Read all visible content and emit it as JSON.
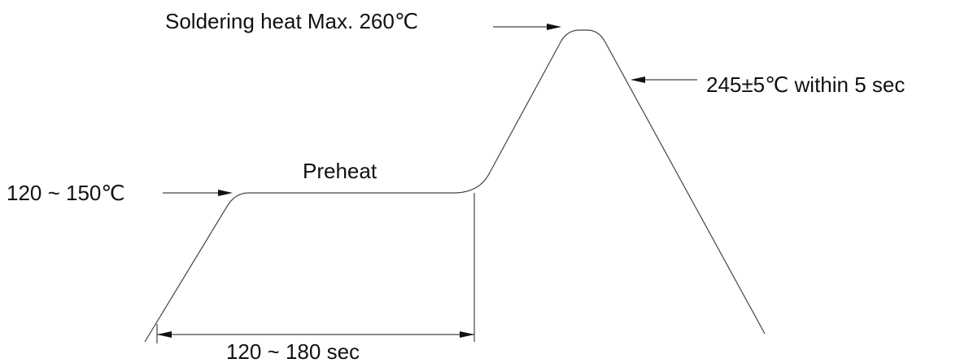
{
  "labels": {
    "peak": "Soldering heat Max. 260℃",
    "reflow": "245±5℃ within 5 sec",
    "preheat": "Preheat",
    "preheat_temp": "120 ~ 150℃",
    "preheat_time": "120 ~ 180 sec"
  }
}
